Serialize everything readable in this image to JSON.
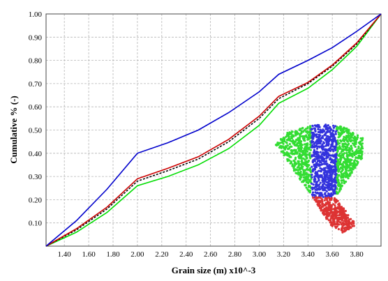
{
  "chart_data": {
    "type": "line",
    "title": "",
    "xlabel": "Grain size (m) x10^-3",
    "ylabel": "Cumulative % (-)",
    "xlim": [
      1.25,
      4.0
    ],
    "ylim": [
      0.0,
      1.0
    ],
    "x_ticks": [
      1.4,
      1.6,
      1.8,
      2.0,
      2.2,
      2.4,
      2.6,
      2.8,
      3.0,
      3.2,
      3.4,
      3.6,
      3.8
    ],
    "x_tick_labels": [
      "1.40",
      "1.60",
      "1.80",
      "2.00",
      "2.20",
      "2.40",
      "2.60",
      "2.80",
      "3.00",
      "3.20",
      "3.40",
      "3.60",
      "3.80"
    ],
    "y_ticks": [
      0.1,
      0.2,
      0.3,
      0.4,
      0.5,
      0.6,
      0.7,
      0.8,
      0.9,
      1.0
    ],
    "y_tick_labels": [
      "0.10",
      "0.20",
      "0.30",
      "0.40",
      "0.50",
      "0.60",
      "0.70",
      "0.80",
      "0.90",
      "1.00"
    ],
    "grid": true,
    "series": [
      {
        "color": "#00dd00",
        "style": "solid",
        "x": [
          1.25,
          1.5,
          1.75,
          2.0,
          2.25,
          2.5,
          2.75,
          3.0,
          3.16,
          3.4,
          3.6,
          3.8,
          4.0
        ],
        "y": [
          0.0,
          0.06,
          0.145,
          0.26,
          0.3,
          0.35,
          0.42,
          0.52,
          0.615,
          0.68,
          0.76,
          0.86,
          1.0
        ]
      },
      {
        "color": "#000000",
        "style": "dashed",
        "x": [
          1.25,
          1.5,
          1.75,
          2.0,
          2.25,
          2.5,
          2.75,
          3.0,
          3.16,
          3.4,
          3.6,
          3.8,
          4.0
        ],
        "y": [
          0.0,
          0.07,
          0.16,
          0.28,
          0.325,
          0.375,
          0.45,
          0.55,
          0.635,
          0.7,
          0.775,
          0.87,
          1.0
        ]
      },
      {
        "color": "#cc0000",
        "style": "solid",
        "x": [
          1.25,
          1.5,
          1.75,
          2.0,
          2.25,
          2.5,
          2.75,
          3.0,
          3.16,
          3.4,
          3.6,
          3.8,
          4.0
        ],
        "y": [
          0.0,
          0.075,
          0.168,
          0.29,
          0.335,
          0.385,
          0.46,
          0.56,
          0.645,
          0.705,
          0.78,
          0.875,
          1.0
        ]
      },
      {
        "color": "#0000cc",
        "style": "solid",
        "x": [
          1.25,
          1.5,
          1.75,
          2.0,
          2.25,
          2.5,
          2.75,
          3.0,
          3.16,
          3.4,
          3.6,
          3.8,
          4.0
        ],
        "y": [
          0.0,
          0.11,
          0.245,
          0.4,
          0.445,
          0.5,
          0.575,
          0.665,
          0.74,
          0.8,
          0.855,
          0.925,
          1.0
        ]
      }
    ],
    "inset": {
      "regions": [
        {
          "color": "#33dd33"
        },
        {
          "color": "#3333dd"
        },
        {
          "color": "#dd3333"
        }
      ]
    }
  }
}
